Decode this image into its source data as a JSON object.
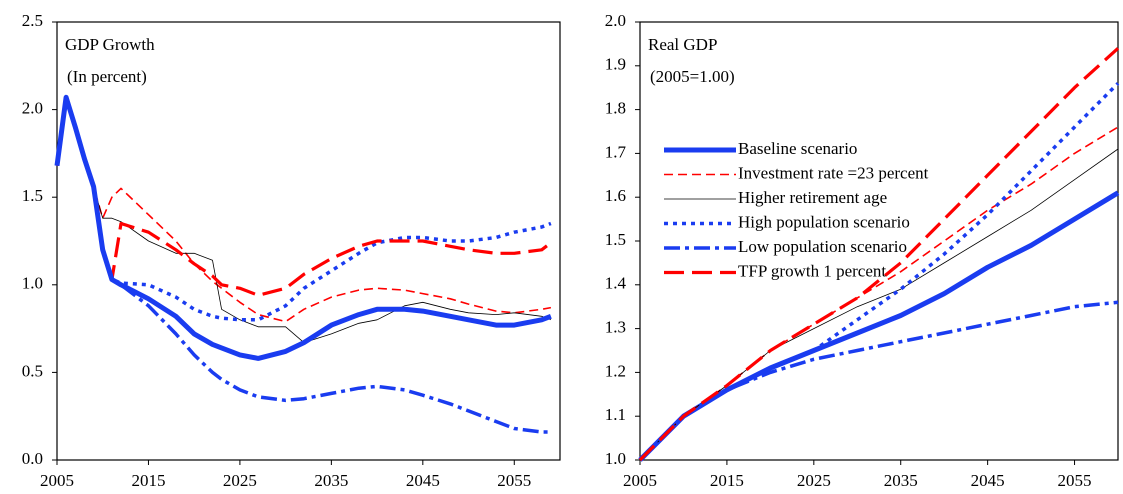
{
  "chart_data": [
    {
      "type": "line",
      "title": "GDP Growth",
      "subtitle": "(In percent)",
      "x": [
        2005,
        2006,
        2007,
        2008,
        2009,
        2010,
        2011,
        2012,
        2015,
        2018,
        2020,
        2022,
        2023,
        2025,
        2027,
        2030,
        2032,
        2035,
        2038,
        2040,
        2043,
        2045,
        2048,
        2050,
        2053,
        2055,
        2058,
        2059
      ],
      "xlim": [
        2005,
        2060
      ],
      "xticks": [
        2005,
        2015,
        2025,
        2035,
        2045,
        2055
      ],
      "ylim": [
        0,
        2.5
      ],
      "yticks": [
        {
          "value": 0,
          "label": "0.0"
        },
        0.5,
        {
          "value": 1,
          "label": "1.0"
        },
        1.5,
        {
          "value": 2,
          "label": "2.0"
        },
        2.5
      ],
      "series": [
        {
          "color": "#ff0000",
          "dash": "dashed",
          "width": 1.6,
          "values": [
            1.68,
            2.07,
            1.9,
            1.72,
            1.56,
            1.38,
            1.5,
            1.55,
            1.4,
            1.25,
            1.12,
            1.02,
            0.98,
            0.9,
            0.83,
            0.79,
            0.86,
            0.93,
            0.97,
            0.98,
            0.97,
            0.95,
            0.92,
            0.89,
            0.85,
            0.84,
            0.86,
            0.87
          ]
        },
        {
          "color": "#000000",
          "dash": "solid",
          "width": 0.8,
          "values": [
            1.68,
            2.07,
            1.9,
            1.72,
            1.56,
            1.38,
            1.38,
            1.36,
            1.25,
            1.18,
            1.18,
            1.14,
            0.86,
            0.8,
            0.76,
            0.76,
            0.67,
            0.72,
            0.78,
            0.8,
            0.88,
            0.9,
            0.86,
            0.84,
            0.83,
            0.84,
            0.82,
            0.8
          ]
        },
        {
          "color": "#1a3cf0",
          "dash": "dotted",
          "width": 3.5,
          "values": [
            1.68,
            2.07,
            1.9,
            1.72,
            1.56,
            1.2,
            1.03,
            1.01,
            1.0,
            0.93,
            0.86,
            0.82,
            0.81,
            0.8,
            0.8,
            0.88,
            0.98,
            1.08,
            1.18,
            1.24,
            1.27,
            1.27,
            1.25,
            1.25,
            1.27,
            1.3,
            1.33,
            1.35
          ]
        },
        {
          "color": "#1a3cf0",
          "dash": "dashdot",
          "width": 3.5,
          "values": [
            1.68,
            2.07,
            1.9,
            1.72,
            1.56,
            1.2,
            1.03,
            1.0,
            0.88,
            0.72,
            0.6,
            0.5,
            0.46,
            0.4,
            0.36,
            0.34,
            0.35,
            0.38,
            0.41,
            0.42,
            0.4,
            0.37,
            0.32,
            0.28,
            0.22,
            0.18,
            0.16,
            0.16
          ]
        },
        {
          "color": "#ff0000",
          "dash": "longdash",
          "width": 3.2,
          "values": [
            1.68,
            2.07,
            1.9,
            1.72,
            1.56,
            1.2,
            1.03,
            1.35,
            1.3,
            1.2,
            1.12,
            1.05,
            1.0,
            0.98,
            0.94,
            0.98,
            1.06,
            1.15,
            1.22,
            1.25,
            1.25,
            1.25,
            1.22,
            1.2,
            1.18,
            1.18,
            1.2,
            1.24
          ]
        },
        {
          "color": "#1a3cf0",
          "dash": "solid",
          "width": 5,
          "values": [
            1.68,
            2.07,
            1.9,
            1.72,
            1.56,
            1.2,
            1.03,
            1.0,
            0.92,
            0.82,
            0.72,
            0.66,
            0.64,
            0.6,
            0.58,
            0.62,
            0.67,
            0.77,
            0.83,
            0.86,
            0.86,
            0.85,
            0.82,
            0.8,
            0.77,
            0.77,
            0.8,
            0.82
          ]
        }
      ]
    },
    {
      "type": "line",
      "title": "Real GDP",
      "subtitle": "(2005=1.00)",
      "x": [
        2005,
        2010,
        2015,
        2020,
        2025,
        2030,
        2035,
        2040,
        2045,
        2050,
        2055,
        2060
      ],
      "xlim": [
        2005,
        2060
      ],
      "xticks": [
        2005,
        2015,
        2025,
        2035,
        2045,
        2055
      ],
      "ylim": [
        1,
        2
      ],
      "yticks": [
        {
          "value": 1,
          "label": "1.0"
        },
        1.1,
        1.2,
        1.3,
        1.4,
        1.5,
        1.6,
        1.7,
        1.8,
        1.9,
        {
          "value": 2,
          "label": "2.0"
        }
      ],
      "series": [
        {
          "name": "Baseline scenario",
          "color": "#1a3cf0",
          "dash": "solid",
          "width": 5,
          "values": [
            1.0,
            1.1,
            1.16,
            1.21,
            1.25,
            1.29,
            1.33,
            1.38,
            1.44,
            1.49,
            1.55,
            1.61
          ]
        },
        {
          "name": "Investment rate =23 percent",
          "color": "#ff0000",
          "dash": "dashed",
          "width": 1.6,
          "values": [
            1.0,
            1.1,
            1.17,
            1.25,
            1.31,
            1.37,
            1.43,
            1.5,
            1.57,
            1.63,
            1.7,
            1.76
          ]
        },
        {
          "name": "Higher retirement age",
          "color": "#000000",
          "dash": "solid",
          "width": 0.8,
          "values": [
            1.0,
            1.1,
            1.17,
            1.25,
            1.3,
            1.35,
            1.39,
            1.45,
            1.51,
            1.57,
            1.64,
            1.71
          ]
        },
        {
          "name": "High population scenario",
          "color": "#1a3cf0",
          "dash": "dotted",
          "width": 3.5,
          "values": [
            1.0,
            1.1,
            1.16,
            1.21,
            1.25,
            1.32,
            1.39,
            1.47,
            1.56,
            1.66,
            1.76,
            1.86
          ]
        },
        {
          "name": "Low population scenario",
          "color": "#1a3cf0",
          "dash": "dashdot",
          "width": 3.5,
          "values": [
            1.0,
            1.1,
            1.16,
            1.2,
            1.23,
            1.25,
            1.27,
            1.29,
            1.31,
            1.33,
            1.35,
            1.36
          ]
        },
        {
          "name": "TFP growth 1 percent",
          "color": "#ff0000",
          "dash": "longdash",
          "width": 3.2,
          "values": [
            1.0,
            1.1,
            1.17,
            1.25,
            1.31,
            1.37,
            1.45,
            1.55,
            1.65,
            1.75,
            1.85,
            1.94
          ]
        }
      ]
    }
  ]
}
